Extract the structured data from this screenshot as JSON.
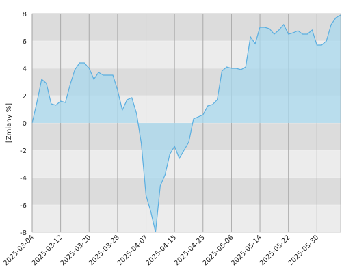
{
  "chart_data": {
    "type": "area",
    "ylabel": "[Zmiany %]",
    "categories": [
      "2025-03-04",
      null,
      null,
      null,
      null,
      null,
      "2025-03-12",
      null,
      null,
      null,
      null,
      null,
      "2025-03-20",
      null,
      null,
      null,
      null,
      null,
      "2025-03-28",
      null,
      null,
      null,
      null,
      null,
      "2025-04-07",
      null,
      null,
      null,
      null,
      null,
      "2025-04-15",
      null,
      null,
      null,
      null,
      null,
      "2025-04-25",
      null,
      null,
      null,
      null,
      null,
      "2025-05-06",
      null,
      null,
      null,
      null,
      null,
      "2025-05-14",
      null,
      null,
      null,
      null,
      null,
      "2025-05-22",
      null,
      null,
      null,
      null,
      null,
      "2025-05-30",
      null,
      null,
      null,
      null,
      null
    ],
    "values": [
      0,
      1.5,
      3.2,
      2.9,
      1.4,
      1.3,
      1.6,
      1.5,
      2.8,
      3.9,
      4.4,
      4.4,
      4.0,
      3.2,
      3.7,
      3.5,
      3.5,
      3.5,
      2.4,
      0.95,
      1.7,
      1.85,
      0.7,
      -1.5,
      -5.3,
      -6.5,
      -8,
      -4.6,
      -3.8,
      -2.3,
      -1.7,
      -2.6,
      -2.0,
      -1.4,
      0.3,
      0.45,
      0.6,
      1.25,
      1.35,
      1.7,
      3.8,
      4.1,
      4.0,
      4.0,
      3.9,
      4.1,
      6.3,
      5.8,
      7.0,
      7.0,
      6.9,
      6.5,
      6.8,
      7.2,
      6.5,
      6.6,
      6.75,
      6.5,
      6.5,
      6.8,
      5.7,
      5.7,
      6.0,
      7.2,
      7.7,
      7.9
    ],
    "color": "#5aaee0",
    "ylim": [
      -8,
      8
    ],
    "yticks": [
      -8,
      -6,
      -4,
      -2,
      0,
      2,
      4,
      6,
      8
    ],
    "grid": true
  }
}
